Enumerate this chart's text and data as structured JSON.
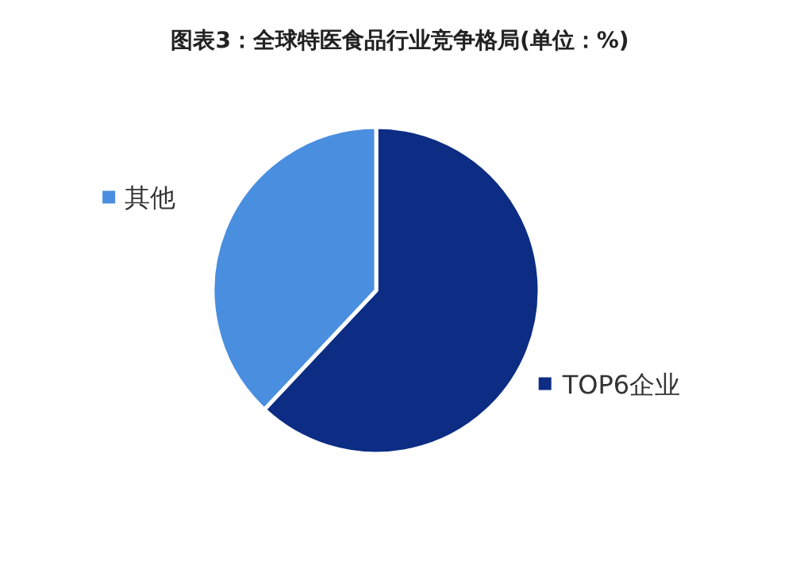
{
  "chart_data": {
    "type": "pie",
    "title": "图表3：全球特医食品行业竞争格局(单位：%)",
    "categories": [
      "TOP6企业",
      "其他"
    ],
    "values": [
      62,
      38
    ],
    "colors": [
      "#0c2d83",
      "#4a8ee0"
    ],
    "legend": "right"
  }
}
